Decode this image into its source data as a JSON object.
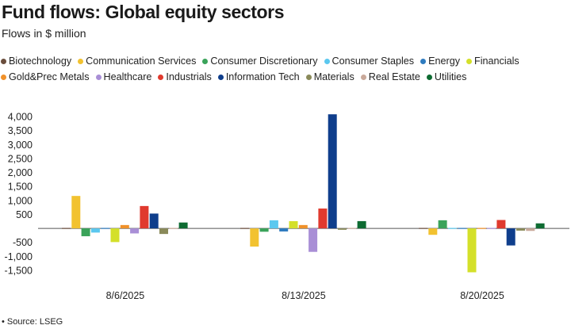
{
  "header": {
    "title": "Fund flows: Global equity sectors",
    "subtitle": "Flows in $ million"
  },
  "footer": {
    "source": "• Source: LSEG"
  },
  "chart_data": {
    "type": "bar",
    "title": "Fund flows: Global equity sectors",
    "ylabel": "Flows in $ million",
    "xlabel": "",
    "categories": [
      "8/6/2025",
      "8/13/2025",
      "8/20/2025"
    ],
    "ylim": [
      -1700,
      4200
    ],
    "yticks": [
      4000,
      3500,
      3000,
      2500,
      2000,
      1500,
      1000,
      500,
      -500,
      -1000,
      -1500
    ],
    "ytick_labels": [
      "4,000",
      "3,500",
      "3,000",
      "2,500",
      "2,000",
      "1,500",
      "1,000",
      "500",
      "-500",
      "-1,000",
      "-1,500"
    ],
    "grid": false,
    "legend_position": "top",
    "series": [
      {
        "name": "Biotechnology",
        "color": "#6b4e3d",
        "values": [
          0,
          10,
          0
        ]
      },
      {
        "name": "Communication Services",
        "color": "#f2c230",
        "values": [
          1160,
          -650,
          -230
        ]
      },
      {
        "name": "Consumer Discretionary",
        "color": "#3aa35a",
        "values": [
          -280,
          -120,
          290
        ]
      },
      {
        "name": "Consumer Staples",
        "color": "#5bc8ef",
        "values": [
          -150,
          290,
          0
        ]
      },
      {
        "name": "Energy",
        "color": "#2e7bbf",
        "values": [
          0,
          -110,
          30
        ]
      },
      {
        "name": "Financials",
        "color": "#d4e02a",
        "values": [
          -490,
          260,
          -1570
        ]
      },
      {
        "name": "Gold&Prec Metals",
        "color": "#f0912a",
        "values": [
          120,
          120,
          0
        ]
      },
      {
        "name": "Healthcare",
        "color": "#a98fd6",
        "values": [
          -180,
          -840,
          0
        ]
      },
      {
        "name": "Industrials",
        "color": "#e03a2e",
        "values": [
          800,
          710,
          300
        ]
      },
      {
        "name": "Information Tech",
        "color": "#0f3e8c",
        "values": [
          530,
          4080,
          -610
        ]
      },
      {
        "name": "Materials",
        "color": "#8a8a5a",
        "values": [
          -200,
          -50,
          -80
        ]
      },
      {
        "name": "Real Estate",
        "color": "#c9a99a",
        "values": [
          0,
          0,
          -90
        ]
      },
      {
        "name": "Utilities",
        "color": "#0e6b32",
        "values": [
          210,
          260,
          180
        ]
      }
    ]
  }
}
